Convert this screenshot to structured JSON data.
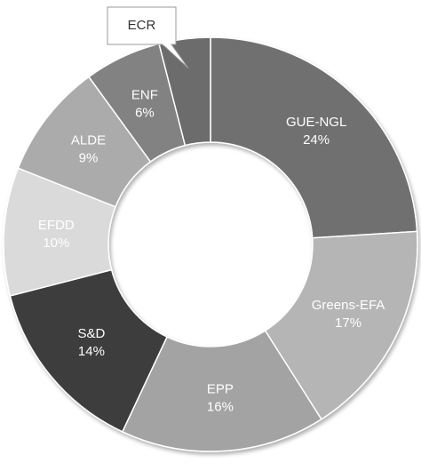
{
  "chart_data": {
    "type": "donut",
    "categories": [
      "GUE-NGL",
      "Greens-EFA",
      "EPP",
      "S&D",
      "EFDD",
      "ALDE",
      "ENF",
      "ECR"
    ],
    "values": [
      24,
      17,
      16,
      14,
      10,
      9,
      6,
      4
    ],
    "value_labels": [
      "24%",
      "17%",
      "16%",
      "14%",
      "10%",
      "9%",
      "6%",
      null
    ],
    "colors": [
      "#707070",
      "#b5b5b5",
      "#a3a3a3",
      "#3c3c3c",
      "#dadada",
      "#ababab",
      "#828282",
      "#6c6c6c"
    ]
  }
}
